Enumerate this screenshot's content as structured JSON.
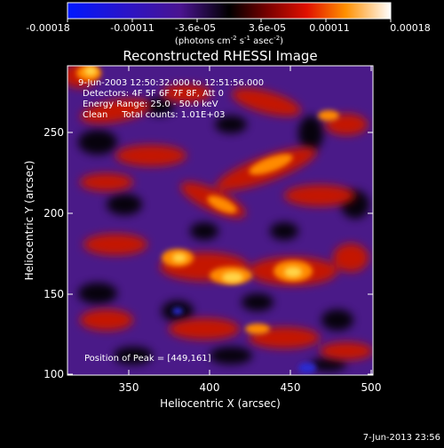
{
  "colorbar": {
    "ticks": [
      "-0.00018",
      "-0.00011",
      "-3.6e-05",
      "3.6e-05",
      "0.00011",
      "0.00018"
    ],
    "units_prefix": "(photons cm",
    "units_exp1": "-2",
    "units_mid": " s",
    "units_exp2": "-1",
    "units_mid2": " asec",
    "units_exp3": "-2",
    "units_suffix": ")"
  },
  "title": "Reconstructed RHESSI Image",
  "info": {
    "time": "9-Jun-2003 12:50:32.000 to 12:51:56.000",
    "detectors": "Detectors: 4F 5F 6F 7F 8F, Att 0",
    "energy": "Energy Range: 25.0 - 50.0 keV",
    "clean": "Clean     Total counts: 1.01E+03",
    "peak": "Position of Peak = [449,161]"
  },
  "axes": {
    "xlabel": "Heliocentric X (arcsec)",
    "ylabel": "Heliocentric Y (arcsec)",
    "xticks": [
      "350",
      "400",
      "450",
      "500"
    ],
    "yticks": [
      "100",
      "150",
      "200",
      "250"
    ]
  },
  "footer": {
    "date": "7-Jun-2013 23:56"
  }
}
